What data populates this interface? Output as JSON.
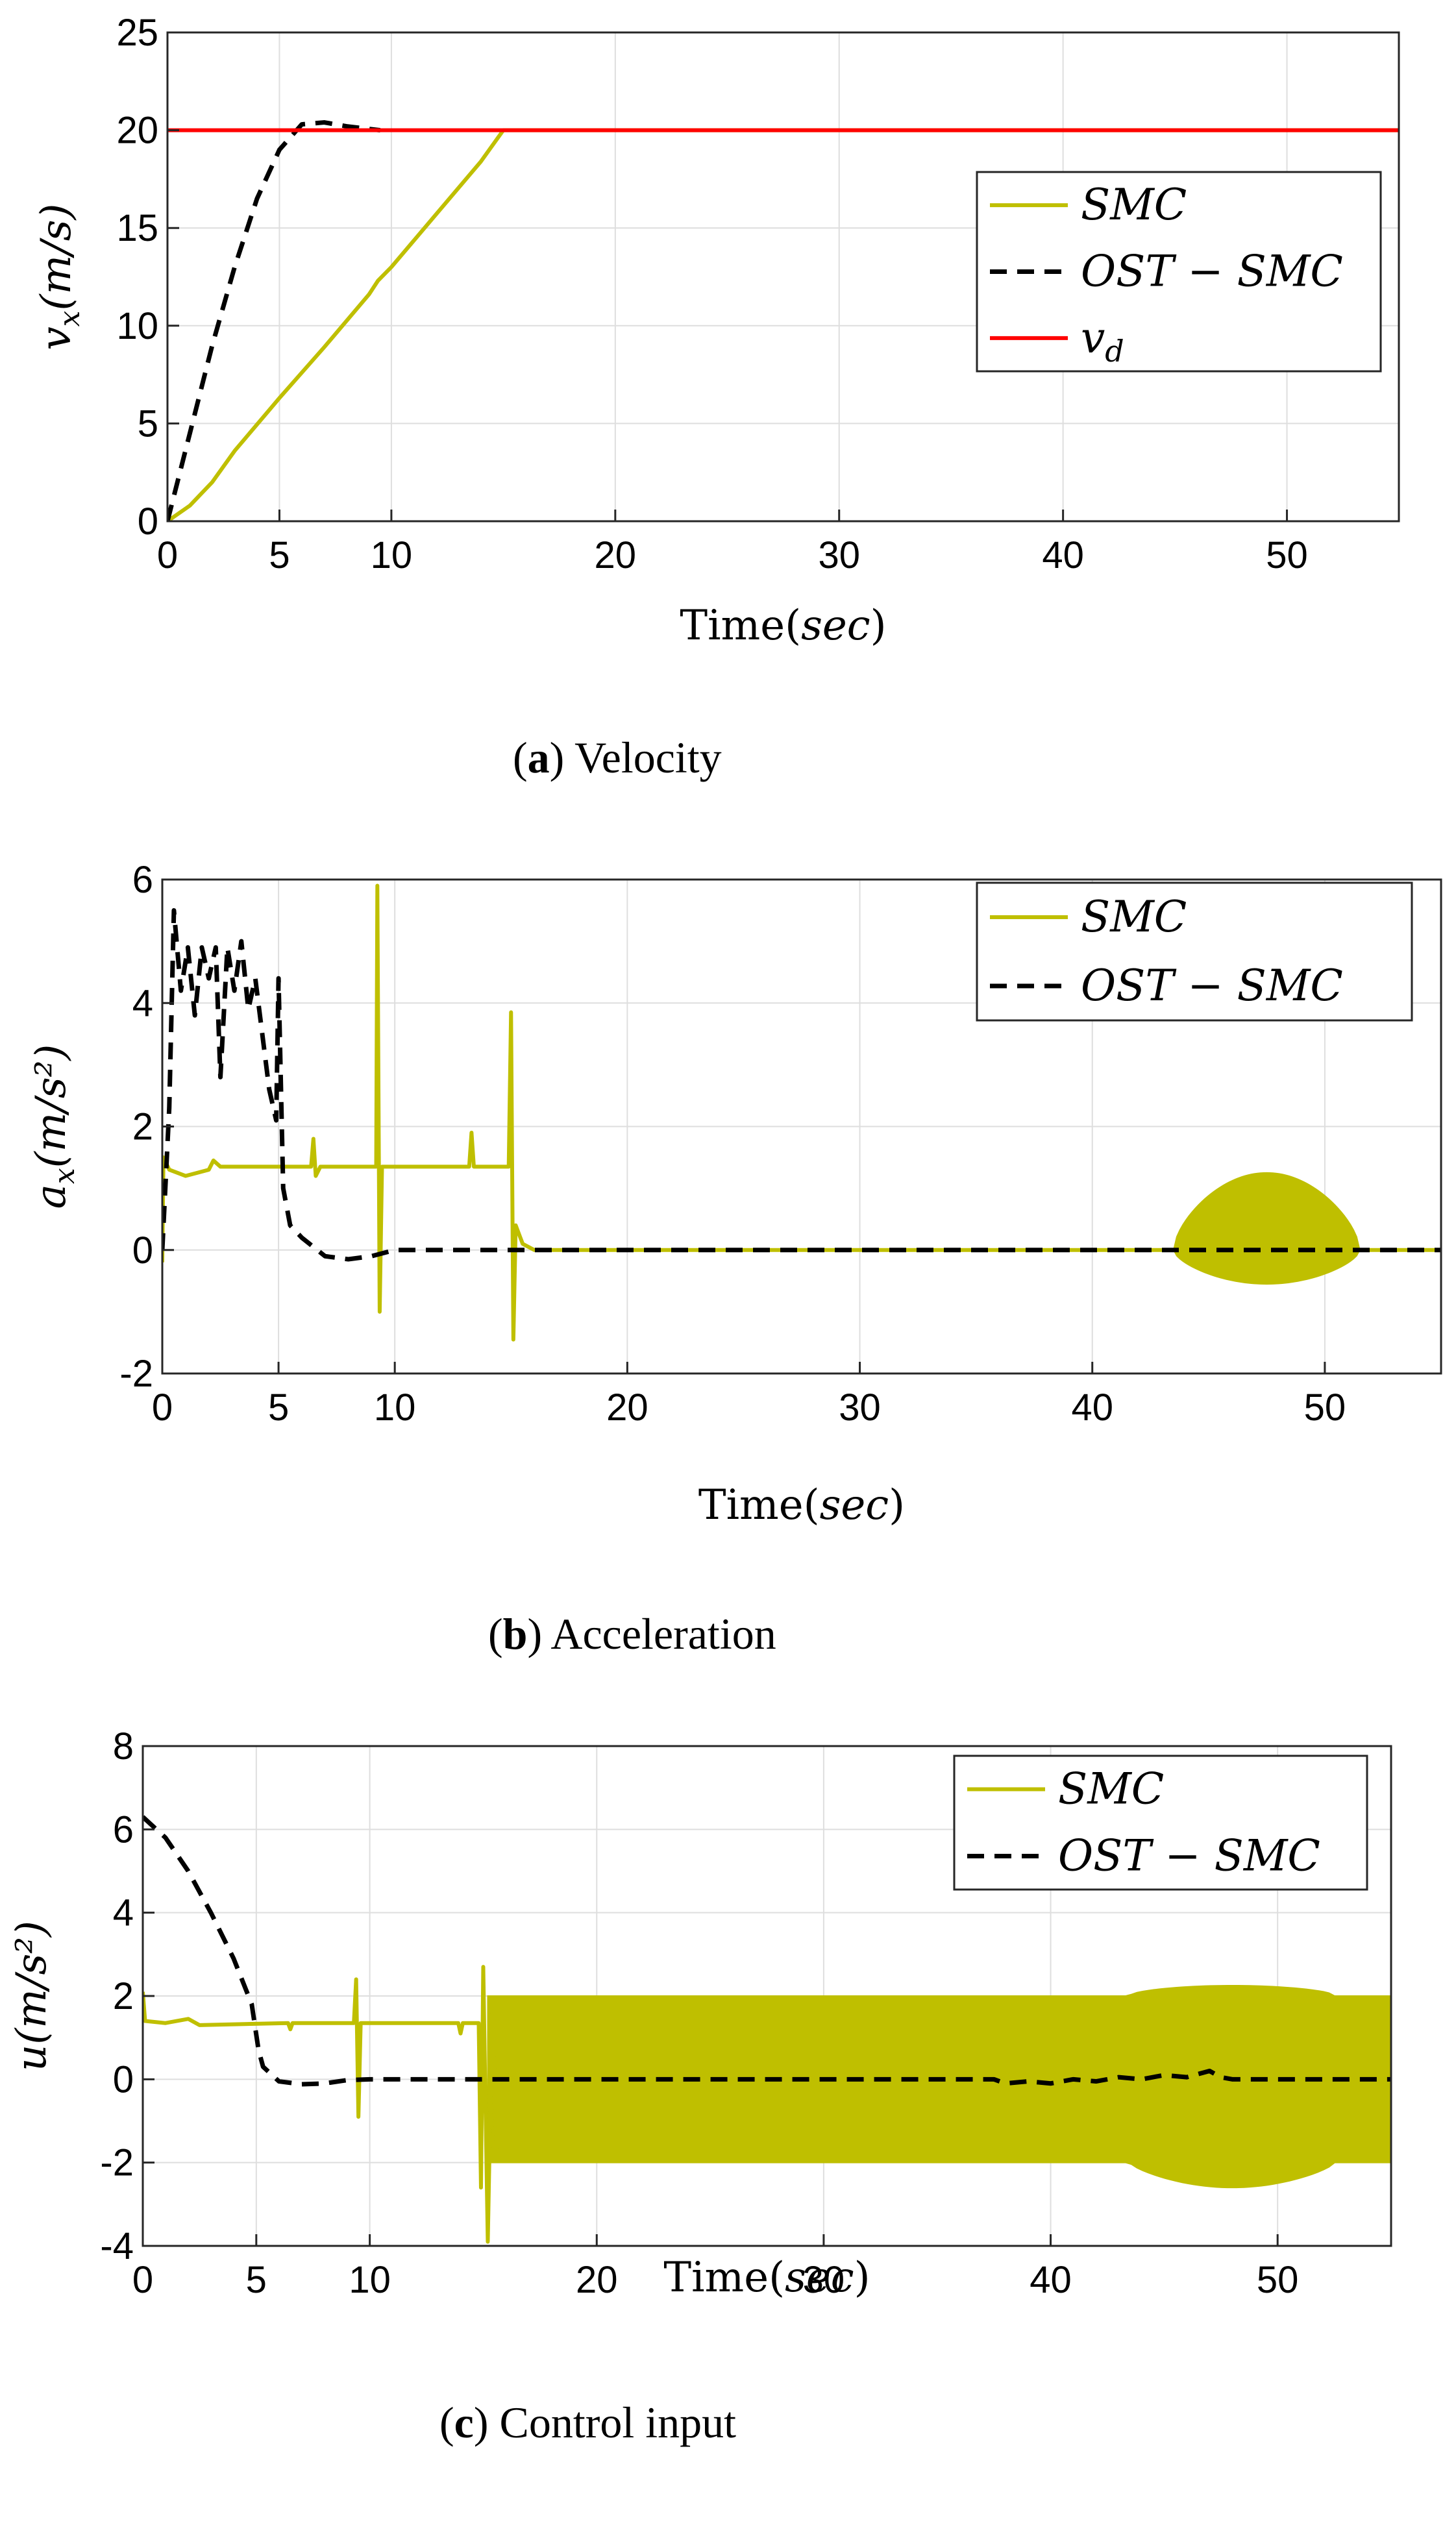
{
  "chart_data": [
    {
      "type": "line",
      "caption": {
        "letter": "a",
        "text": " Velocity"
      },
      "xlabel": {
        "main": "Time",
        "unit": "sec"
      },
      "ylabel": {
        "base": "v",
        "sub": "x",
        "unit": "(m/s)"
      },
      "xlim": [
        0,
        55
      ],
      "ylim": [
        0,
        25
      ],
      "xticks": [
        0,
        5,
        10,
        20,
        30,
        40,
        50
      ],
      "yticks": [
        0,
        5,
        10,
        15,
        20,
        25
      ],
      "grid": true,
      "legend_position": "right-middle",
      "series": [
        {
          "name": "SMC",
          "color": "#bfbf00",
          "style": "solid",
          "points": [
            [
              0,
              0
            ],
            [
              1,
              0.8
            ],
            [
              2,
              2.0
            ],
            [
              3,
              3.6
            ],
            [
              5,
              6.3
            ],
            [
              7,
              8.9
            ],
            [
              9,
              11.6
            ],
            [
              9.4,
              12.3
            ],
            [
              10,
              13
            ],
            [
              12,
              15.7
            ],
            [
              14,
              18.4
            ],
            [
              15,
              20
            ],
            [
              55,
              20
            ]
          ]
        },
        {
          "name": "OST − SMC",
          "color": "#000000",
          "style": "dashed",
          "points": [
            [
              0,
              0
            ],
            [
              1,
              4.5
            ],
            [
              2,
              9
            ],
            [
              3,
              13
            ],
            [
              4,
              16.5
            ],
            [
              5,
              19
            ],
            [
              6,
              20.3
            ],
            [
              7,
              20.4
            ],
            [
              8,
              20.2
            ],
            [
              9.5,
              20.0
            ]
          ]
        },
        {
          "name": "v_d",
          "legendBase": "v",
          "legendSub": "d",
          "color": "#ff0000",
          "style": "solid",
          "points": [
            [
              0,
              20
            ],
            [
              55,
              20
            ]
          ]
        }
      ]
    },
    {
      "type": "line",
      "caption": {
        "letter": "b",
        "text": " Acceleration"
      },
      "xlabel": {
        "main": "Time",
        "unit": "sec"
      },
      "ylabel": {
        "base": "a",
        "sub": "x",
        "unit": "(m/s²)"
      },
      "xlim": [
        0,
        55
      ],
      "ylim": [
        -2,
        6
      ],
      "xticks": [
        0,
        5,
        10,
        20,
        30,
        40,
        50
      ],
      "yticks": [
        -2,
        0,
        2,
        4,
        6
      ],
      "grid": true,
      "legend_position": "top-right",
      "series": [
        {
          "name": "SMC",
          "color": "#bfbf00",
          "style": "solid",
          "points": [
            [
              0,
              -0.2
            ],
            [
              0.05,
              1.5
            ],
            [
              0.3,
              1.3
            ],
            [
              1,
              1.2
            ],
            [
              1.5,
              1.25
            ],
            [
              2,
              1.3
            ],
            [
              2.2,
              1.45
            ],
            [
              2.5,
              1.35
            ],
            [
              4,
              1.35
            ],
            [
              6.4,
              1.35
            ],
            [
              6.5,
              1.8
            ],
            [
              6.6,
              1.2
            ],
            [
              6.8,
              1.35
            ],
            [
              9.2,
              1.35
            ],
            [
              9.25,
              5.9
            ],
            [
              9.35,
              -1.0
            ],
            [
              9.45,
              1.35
            ],
            [
              13.2,
              1.35
            ],
            [
              13.3,
              1.9
            ],
            [
              13.4,
              1.35
            ],
            [
              14.9,
              1.35
            ],
            [
              15.0,
              3.85
            ],
            [
              15.1,
              -1.45
            ],
            [
              15.2,
              0.4
            ],
            [
              15.5,
              0.1
            ],
            [
              16,
              0
            ],
            [
              55,
              0
            ]
          ]
        },
        {
          "name": "OST − SMC",
          "color": "#000000",
          "style": "dashed",
          "points": [
            [
              0,
              0
            ],
            [
              0.3,
              2.3
            ],
            [
              0.5,
              5.5
            ],
            [
              0.8,
              4.2
            ],
            [
              1.1,
              4.9
            ],
            [
              1.4,
              3.8
            ],
            [
              1.7,
              4.9
            ],
            [
              2.0,
              4.4
            ],
            [
              2.3,
              4.9
            ],
            [
              2.5,
              2.8
            ],
            [
              2.8,
              4.9
            ],
            [
              3.1,
              4.2
            ],
            [
              3.4,
              5.0
            ],
            [
              3.7,
              3.9
            ],
            [
              4.0,
              4.4
            ],
            [
              4.3,
              3.5
            ],
            [
              4.6,
              2.6
            ],
            [
              4.9,
              2.1
            ],
            [
              5.0,
              4.4
            ],
            [
              5.2,
              1.0
            ],
            [
              5.5,
              0.4
            ],
            [
              6,
              0.2
            ],
            [
              7,
              -0.1
            ],
            [
              8,
              -0.15
            ],
            [
              9,
              -0.1
            ],
            [
              10,
              0
            ],
            [
              55,
              0
            ]
          ]
        }
      ],
      "oscillation_band": {
        "series": "SMC",
        "x_start": 43.5,
        "x_end": 51.5,
        "peak_max": 1.25,
        "peak_min": -0.55
      }
    },
    {
      "type": "line",
      "caption": {
        "letter": "c",
        "text": " Control input"
      },
      "xlabel": {
        "main": "Time",
        "unit": "sec"
      },
      "ylabel": {
        "base": "u",
        "sub": "",
        "unit": "(m/s²)"
      },
      "xlim": [
        0,
        55
      ],
      "ylim": [
        -4,
        8
      ],
      "xticks": [
        0,
        5,
        10,
        20,
        30,
        40,
        50
      ],
      "yticks": [
        -4,
        -2,
        0,
        2,
        4,
        6,
        8
      ],
      "grid": true,
      "legend_position": "top-right",
      "series": [
        {
          "name": "SMC",
          "color": "#bfbf00",
          "style": "solid",
          "points": [
            [
              0,
              2.1
            ],
            [
              0.1,
              1.4
            ],
            [
              1,
              1.35
            ],
            [
              2,
              1.45
            ],
            [
              2.5,
              1.3
            ],
            [
              6.4,
              1.35
            ],
            [
              6.5,
              1.2
            ],
            [
              6.6,
              1.35
            ],
            [
              9.3,
              1.35
            ],
            [
              9.4,
              2.4
            ],
            [
              9.5,
              -0.9
            ],
            [
              9.6,
              1.35
            ],
            [
              13.9,
              1.35
            ],
            [
              14.0,
              1.1
            ],
            [
              14.1,
              1.35
            ],
            [
              14.8,
              1.35
            ],
            [
              14.9,
              -2.6
            ],
            [
              15.0,
              2.7
            ],
            [
              15.2,
              -3.9
            ],
            [
              15.4,
              1.9
            ],
            [
              15.6,
              -2.0
            ]
          ]
        },
        {
          "name": "OST − SMC",
          "color": "#000000",
          "style": "dashed",
          "points": [
            [
              0,
              6.3
            ],
            [
              1,
              5.8
            ],
            [
              2,
              5.0
            ],
            [
              3,
              4.0
            ],
            [
              4,
              2.9
            ],
            [
              4.8,
              1.8
            ],
            [
              5.1,
              0.7
            ],
            [
              5.3,
              0.3
            ],
            [
              6,
              -0.05
            ],
            [
              7,
              -0.12
            ],
            [
              8,
              -0.1
            ],
            [
              9,
              -0.02
            ],
            [
              10,
              0
            ],
            [
              37.5,
              0
            ],
            [
              38,
              -0.1
            ],
            [
              39,
              -0.05
            ],
            [
              40,
              -0.1
            ],
            [
              41,
              0
            ],
            [
              42,
              -0.05
            ],
            [
              43,
              0.05
            ],
            [
              44,
              0
            ],
            [
              45,
              0.1
            ],
            [
              46,
              0.05
            ],
            [
              47,
              0.2
            ],
            [
              47.5,
              0.05
            ],
            [
              48,
              0
            ],
            [
              55,
              0
            ]
          ]
        }
      ],
      "oscillation_band": {
        "series": "SMC",
        "x_start": 15.2,
        "x_end": 55,
        "base_max": 2.0,
        "base_min": -2.0,
        "bulge_start": 43.5,
        "bulge_end": 52.5,
        "bulge_peak_x": 47.5,
        "bulge_max": 2.25,
        "bulge_min": -2.6
      }
    }
  ]
}
